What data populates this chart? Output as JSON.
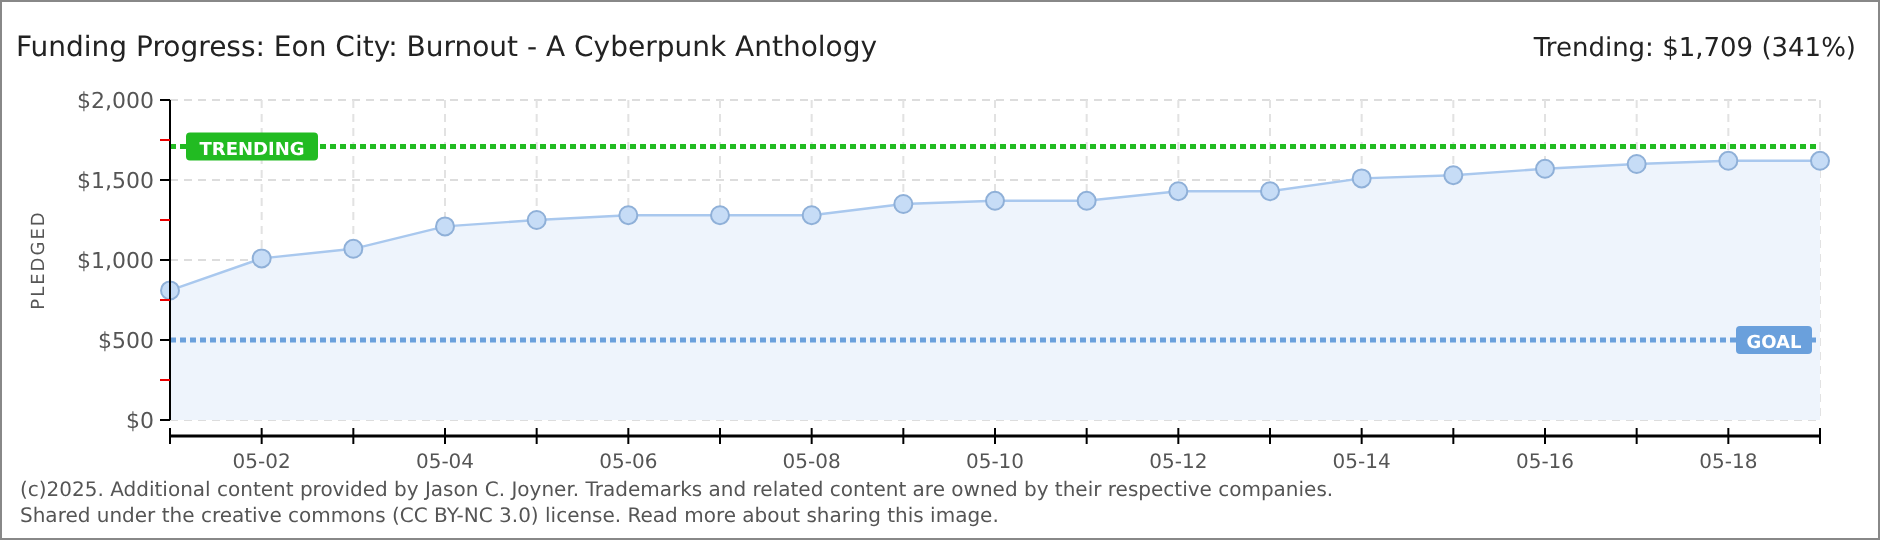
{
  "chart_data": {
    "type": "area",
    "title": "Funding Progress: Eon City: Burnout - A Cyberpunk Anthology",
    "ylabel": "PLEDGED",
    "annotations": [
      "Trending:  $1,709 (341%)",
      "(c)2025. Additional content provided by Jason C. Joyner. Trademarks and related content are owned by their respective companies.",
      "Shared under the creative commons (CC BY-NC 3.0) license. Read more about sharing this image."
    ],
    "x": [
      "--05-01",
      "--05-02",
      "--05-03",
      "--05-04",
      "--05-05",
      "--05-06",
      "--05-07",
      "--05-08",
      "--05-09",
      "--05-10",
      "--05-11",
      "--05-12",
      "--05-13",
      "--05-14",
      "--05-15",
      "--05-16",
      "--05-17",
      "--05-18",
      "--05-19"
    ],
    "series": [
      {
        "color": "#a9c8ee",
        "values": [
          810,
          1010,
          1070,
          1210,
          1250,
          1280,
          1280,
          1280,
          1350,
          1370,
          1370,
          1430,
          1430,
          1510,
          1530,
          1570,
          1600,
          1620,
          1620
        ]
      }
    ],
    "xlim": [
      "--05-01",
      "--05-19"
    ],
    "xticks": [
      {
        "value": "--05-01",
        "label": null
      },
      {
        "value": "--05-02",
        "label": "05-02"
      },
      {
        "value": "--05-03",
        "label": null
      },
      {
        "value": "--05-04",
        "label": "05-04"
      },
      {
        "value": "--05-05",
        "label": null
      },
      {
        "value": "--05-06",
        "label": "05-06"
      },
      {
        "value": "--05-07",
        "label": null
      },
      {
        "value": "--05-08",
        "label": "05-08"
      },
      {
        "value": "--05-09",
        "label": null
      },
      {
        "value": "--05-10",
        "label": "05-10"
      },
      {
        "value": "--05-11",
        "label": null
      },
      {
        "value": "--05-12",
        "label": "05-12"
      },
      {
        "value": "--05-13",
        "label": null
      },
      {
        "value": "--05-14",
        "label": "05-14"
      },
      {
        "value": "--05-15",
        "label": null
      },
      {
        "value": "--05-16",
        "label": "05-16"
      },
      {
        "value": "--05-17",
        "label": null
      },
      {
        "value": "--05-18",
        "label": "05-18"
      },
      {
        "value": "--05-19",
        "label": null
      }
    ],
    "ylim": [
      0,
      2000
    ],
    "yticks": [
      {
        "value": 0,
        "label": "$0"
      },
      {
        "value": 250,
        "label": null
      },
      {
        "value": 500,
        "label": "$500"
      },
      {
        "value": 750,
        "label": null
      },
      {
        "value": 1000,
        "label": "$1,000"
      },
      {
        "value": 1250,
        "label": null
      },
      {
        "value": 1500,
        "label": "$1,500"
      },
      {
        "value": 1750,
        "label": null
      },
      {
        "value": 2000,
        "label": "$2,000"
      }
    ],
    "ref_lines": [
      {
        "axis": "y",
        "value": 1709,
        "label": "TRENDING",
        "color": "#22bb22",
        "line_style": "dotted"
      },
      {
        "axis": "y",
        "value": 500,
        "label": "GOAL",
        "color": "#6aa0dc",
        "line_style": "dotted"
      }
    ],
    "grid": true,
    "marker": "circle"
  }
}
